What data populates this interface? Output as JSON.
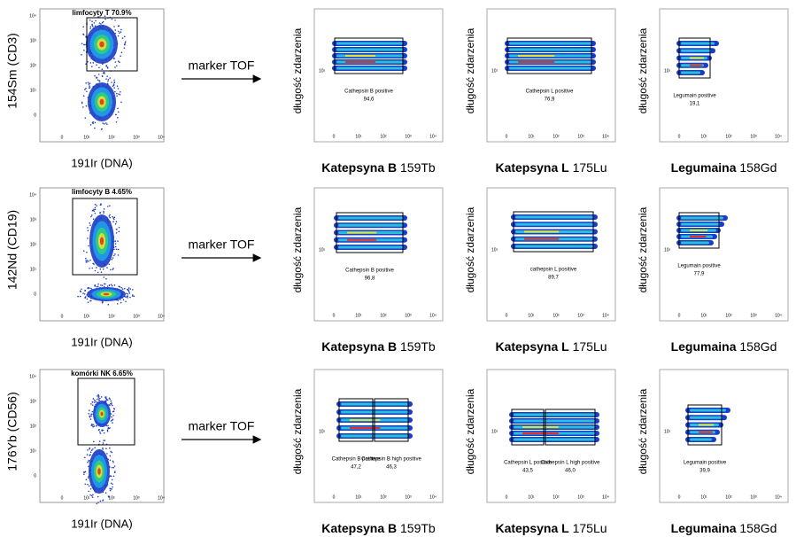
{
  "ticks": [
    "0",
    "10¹",
    "10²",
    "10³",
    "10⁴"
  ],
  "rows": [
    {
      "y_label": "154Sm (CD3)",
      "gate": "limfocyty T 70.9%",
      "x_label": "191Ir (DNA)",
      "arrow": "marker TOF",
      "panels": [
        {
          "y_label": "długość zdarzenia",
          "gates": [
            {
              "name": "Cathepsin B positive",
              "value": "94,6"
            }
          ],
          "x_bold": "Katepsyna B",
          "x_rest": "159Tb"
        },
        {
          "y_label": "długość zdarzenia",
          "gates": [
            {
              "name": "Cathepsin L positive",
              "value": "76,9"
            }
          ],
          "x_bold": "Katepsyna L",
          "x_rest": "175Lu"
        },
        {
          "y_label": "długość zdarzenia",
          "gates": [
            {
              "name": "Legumain positive",
              "value": "19,1"
            }
          ],
          "x_bold": "Legumaina",
          "x_rest": "158Gd"
        }
      ]
    },
    {
      "y_label": "142Nd (CD19)",
      "gate": "limfocyty B 4.65%",
      "x_label": "191Ir (DNA)",
      "arrow": "marker TOF",
      "panels": [
        {
          "y_label": "długość zdarzenia",
          "gates": [
            {
              "name": "Cathepsin B positive",
              "value": "96,8"
            }
          ],
          "x_bold": "Katepsyna B",
          "x_rest": "159Tb"
        },
        {
          "y_label": "długość zdarzenia",
          "gates": [
            {
              "name": "cathepsin L positive",
              "value": "89,7"
            }
          ],
          "x_bold": "Katepsyna L",
          "x_rest": "175Lu"
        },
        {
          "y_label": "długość zdarzenia",
          "gates": [
            {
              "name": "Legumain positive",
              "value": "77,9"
            }
          ],
          "x_bold": "Legumaina",
          "x_rest": "158Gd"
        }
      ]
    },
    {
      "y_label": "176Yb (CD56)",
      "gate": "komórki NK 6.65%",
      "x_label": "191Ir (DNA)",
      "arrow": "marker TOF",
      "panels": [
        {
          "y_label": "długość zdarzenia",
          "gates": [
            {
              "name": "Cathepsin B positive",
              "value": "47,2"
            },
            {
              "name": "Cathepsin B high positive",
              "value": "46,3"
            }
          ],
          "x_bold": "Katepsyna B",
          "x_rest": "159Tb"
        },
        {
          "y_label": "długość zdarzenia",
          "gates": [
            {
              "name": "Cathepsin L positive",
              "value": "43,5"
            },
            {
              "name": "Cathepsin L high positive",
              "value": "46,0"
            }
          ],
          "x_bold": "Katepsyna L",
          "x_rest": "175Lu"
        },
        {
          "y_label": "długość zdarzenia",
          "gates": [
            {
              "name": "Legumain positive",
              "value": "39,9"
            }
          ],
          "x_bold": "Legumaina",
          "x_rest": "158Gd"
        }
      ]
    }
  ]
}
